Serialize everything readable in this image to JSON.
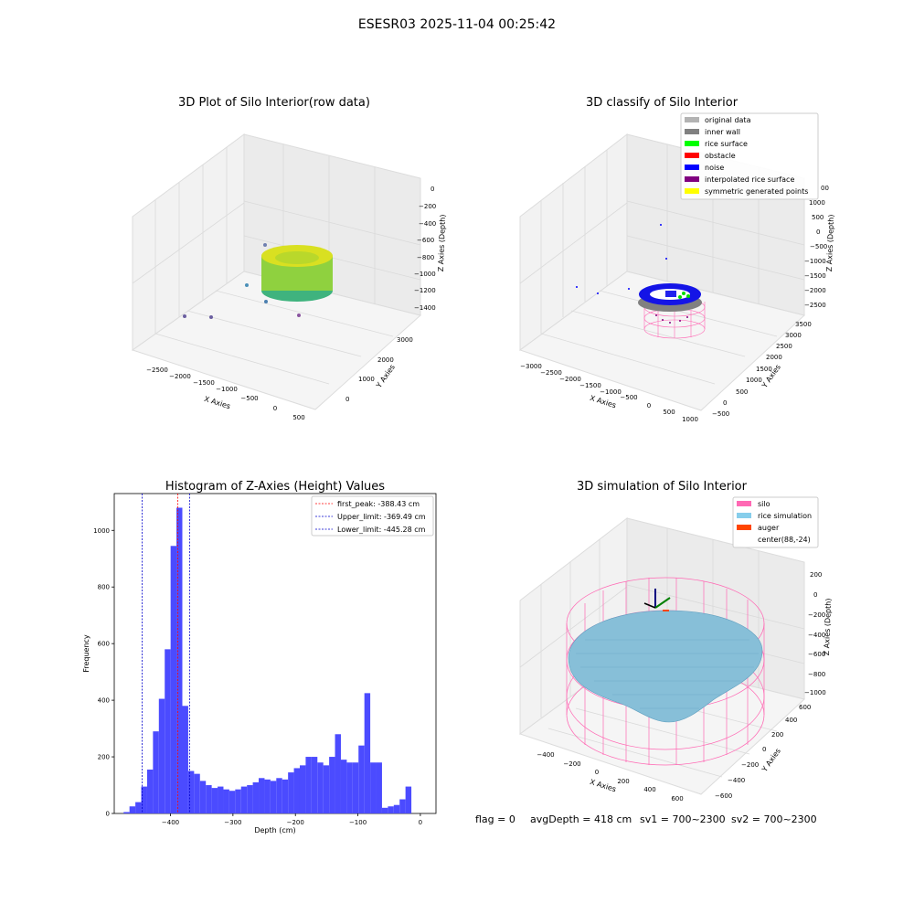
{
  "suptitle": "ESESR03 2025-11-04 00:25:42",
  "status": {
    "flag": "flag = 0",
    "avg_depth": "avgDepth = 418 cm",
    "sv1": "sv1 = 700~2300",
    "sv2": "sv2 = 700~2300"
  },
  "colors": {
    "grid_pane": "#f2f2f2",
    "grid_line": "#d9d9d9",
    "hist_bar": "#4b4bff",
    "peak_line": "#ff0000",
    "limit_line": "#0000cc",
    "silo_wire": "#ff69b4",
    "rice_fill": "#87bfd8",
    "auger": "#ff4500"
  },
  "chart_data": [
    {
      "type": "scatter",
      "subtype": "3d",
      "title": "3D Plot of Silo Interior(row data)",
      "xlabel": "X Axies",
      "ylabel": "Y Axies",
      "zlabel": "Z Axies (Depth)",
      "x_ticks": [
        "−2500",
        "−2000",
        "−1500",
        "−1000",
        "−500",
        "0",
        "500"
      ],
      "y_ticks": [
        "0",
        "1000",
        "2000",
        "3000"
      ],
      "z_ticks": [
        "0",
        "−200",
        "−400",
        "−600",
        "−800",
        "−1000",
        "−1200",
        "−1400"
      ],
      "description_colormap": "viridis"
    },
    {
      "type": "scatter",
      "subtype": "3d",
      "title": "3D classify of Silo Interior",
      "xlabel": "X Axies",
      "ylabel": "Y Axies",
      "zlabel": "Z Axies (Depth)",
      "x_ticks": [
        "−3000",
        "−2500",
        "−2000",
        "−1500",
        "−1000",
        "−500",
        "0",
        "500",
        "1000"
      ],
      "y_ticks": [
        "−500",
        "0",
        "500",
        "1000",
        "1500",
        "2000",
        "2500",
        "3000",
        "3500"
      ],
      "z_ticks": [
        "1000",
        "500",
        "0",
        "−500",
        "−1000",
        "−1500",
        "−2000",
        "−2500"
      ],
      "z_partial_tick": "00",
      "legend_position": "top-right",
      "legend": [
        {
          "label": "original data",
          "color": "#b3b3b3"
        },
        {
          "label": "inner wall",
          "color": "#808080"
        },
        {
          "label": "rice surface",
          "color": "#00ff00"
        },
        {
          "label": "obstacle",
          "color": "#ff0000"
        },
        {
          "label": "noise",
          "color": "#0000ff"
        },
        {
          "label": "interpolated rice surface",
          "color": "#800080"
        },
        {
          "label": "symmetric generated points",
          "color": "#ffff00"
        }
      ]
    },
    {
      "type": "bar",
      "subtype": "histogram",
      "title": "Histogram of Z-Axies (Height) Values",
      "xlabel": "Depth (cm)",
      "ylabel": "Frequency",
      "xlim": [
        -490,
        25
      ],
      "ylim": [
        0,
        1130
      ],
      "x_ticks": [
        -400,
        -300,
        -200,
        -100,
        0
      ],
      "x_tick_labels": [
        "−400",
        "−300",
        "−200",
        "−100",
        "0"
      ],
      "y_ticks": [
        0,
        200,
        400,
        600,
        800,
        1000
      ],
      "bin_start": -475,
      "bin_width": 9.4,
      "values": [
        5,
        25,
        40,
        95,
        155,
        290,
        405,
        580,
        945,
        1080,
        380,
        150,
        140,
        115,
        100,
        90,
        95,
        85,
        80,
        85,
        95,
        100,
        110,
        125,
        120,
        115,
        125,
        120,
        145,
        160,
        170,
        200,
        200,
        180,
        170,
        200,
        280,
        190,
        180,
        180,
        240,
        425,
        180,
        180,
        20,
        25,
        30,
        50,
        95
      ],
      "lines": [
        {
          "label": "first_peak: -388.43 cm",
          "x": -388.43,
          "color": "#ff0000"
        },
        {
          "label": "Upper_limit: -369.49 cm",
          "x": -369.49,
          "color": "#0000cc"
        },
        {
          "label": "Lower_limit: -445.28 cm",
          "x": -445.28,
          "color": "#0000cc"
        }
      ],
      "legend_position": "top-right"
    },
    {
      "type": "area",
      "subtype": "3d-surface",
      "title": "3D simulation of Silo Interior",
      "xlabel": "X Axies",
      "ylabel": "Y Axies",
      "zlabel": "Z Axies (Depth)",
      "x_ticks": [
        "−400",
        "−200",
        "0",
        "200",
        "400",
        "600"
      ],
      "y_ticks": [
        "−600",
        "−400",
        "−200",
        "0",
        "200",
        "400",
        "600"
      ],
      "z_ticks": [
        "200",
        "0",
        "−200",
        "−400",
        "−600",
        "−800",
        "−1000"
      ],
      "legend_position": "top-right",
      "legend": [
        {
          "label": "silo",
          "color": "#ff69b4"
        },
        {
          "label": "rice simulation",
          "color": "#87ceeb"
        },
        {
          "label": "auger",
          "color": "#ff4500"
        },
        {
          "label": "center(88,-24)",
          "color": "none"
        }
      ]
    }
  ]
}
